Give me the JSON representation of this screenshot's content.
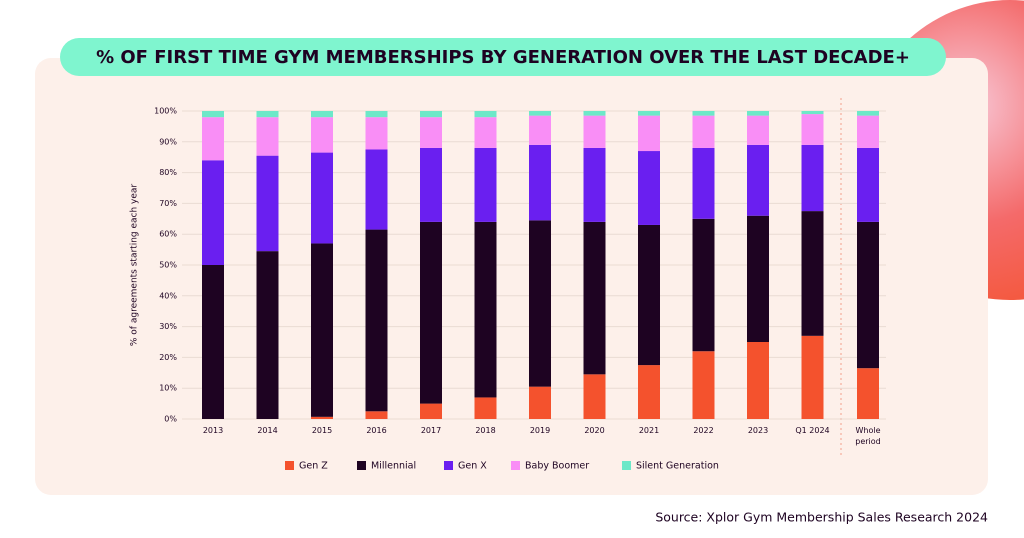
{
  "chart_data": {
    "type": "stacked-bar",
    "title": "% OF FIRST TIME GYM MEMBERSHIPS BY GENERATION OVER THE LAST DECADE+",
    "y_label": "% of agreements starting each year",
    "source": "Source: Xplor Gym Membership Sales Research 2024",
    "categories": [
      "2013",
      "2014",
      "2015",
      "2016",
      "2017",
      "2018",
      "2019",
      "2020",
      "2021",
      "2022",
      "2023",
      "Q1 2024",
      "Whole period"
    ],
    "series": [
      {
        "name": "Gen Z",
        "color": "#f4522d",
        "values": [
          0,
          0,
          0.7,
          2.5,
          5,
          7,
          10.5,
          14.5,
          17.5,
          22,
          25,
          27,
          16.5
        ]
      },
      {
        "name": "Millennial",
        "color": "#1e0322",
        "values": [
          50,
          54.5,
          56.3,
          59,
          59,
          57,
          54,
          49.5,
          45.5,
          43,
          41,
          40.5,
          47.5
        ]
      },
      {
        "name": "Gen X",
        "color": "#6a1ff0",
        "values": [
          34,
          31,
          29.5,
          26,
          24,
          24,
          24.5,
          24,
          24,
          23,
          23,
          21.5,
          24
        ]
      },
      {
        "name": "Baby Boomer",
        "color": "#f98ef6",
        "values": [
          14,
          12.5,
          11.5,
          10.5,
          10,
          10,
          9.5,
          10.5,
          11.5,
          10.5,
          9.5,
          10,
          10.5
        ]
      },
      {
        "name": "Silent Generation",
        "color": "#6de8c8",
        "values": [
          2,
          2,
          2,
          2,
          2,
          2,
          1.5,
          1.5,
          1.5,
          1.5,
          1.5,
          1,
          1.5
        ]
      }
    ],
    "ylim": [
      0,
      100
    ],
    "yticks": [
      {
        "value": 0,
        "label": "0%"
      },
      {
        "value": 10,
        "label": "10%"
      },
      {
        "value": 20,
        "label": "20%"
      },
      {
        "value": 30,
        "label": "30%"
      },
      {
        "value": 40,
        "label": "40%"
      },
      {
        "value": 50,
        "label": "50%"
      },
      {
        "value": 60,
        "label": "60%"
      },
      {
        "value": 70,
        "label": "70%"
      },
      {
        "value": 80,
        "label": "80%"
      },
      {
        "value": 90,
        "label": "90%"
      },
      {
        "value": 100,
        "label": "100%"
      }
    ],
    "grid": true
  }
}
